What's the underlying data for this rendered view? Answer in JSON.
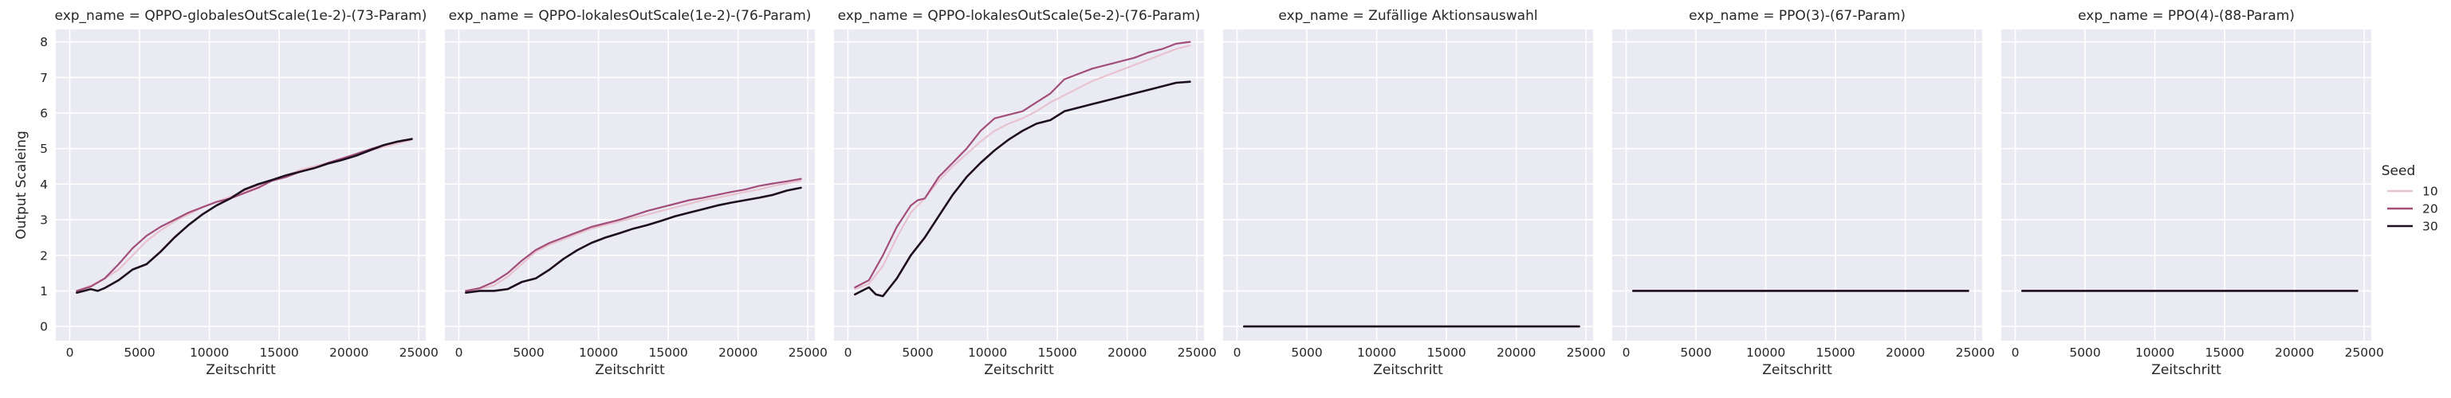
{
  "figure": {
    "ylabel": "Output Scaleing",
    "xlabel": "Zeitschritt",
    "legend": {
      "title": "Seed",
      "placement": "right",
      "entries": [
        {
          "label": "10",
          "color": "#e8c2cf"
        },
        {
          "label": "20",
          "color": "#a24d7a"
        },
        {
          "label": "30",
          "color": "#1d0f1f"
        }
      ]
    },
    "colors": {
      "background": "#eaeaf2",
      "grid": "#ffffff"
    }
  },
  "chart_data": [
    {
      "type": "line",
      "title": "exp_name = QPPO-globalesOutScale(1e-2)-(73-Param)",
      "xlabel": "Zeitschritt",
      "ylabel": "Output Scaleing",
      "xlim": [
        -1000,
        25500
      ],
      "ylim": [
        -0.4,
        8.35
      ],
      "xticks": [
        0,
        5000,
        10000,
        15000,
        20000,
        25000
      ],
      "yticks": [
        0,
        1,
        2,
        3,
        4,
        5,
        6,
        7,
        8
      ],
      "grid": true,
      "series": [
        {
          "name": "10",
          "color": "#e8c2cf",
          "x": [
            500,
            1500,
            2500,
            3500,
            4500,
            5500,
            6500,
            7500,
            8500,
            9500,
            10500,
            11500,
            12500,
            13500,
            14500,
            15500,
            16500,
            17500,
            18500,
            19500,
            20500,
            21500,
            22500,
            23500,
            24500
          ],
          "y": [
            1.0,
            1.15,
            1.35,
            1.6,
            2.0,
            2.4,
            2.7,
            2.95,
            3.15,
            3.35,
            3.5,
            3.65,
            3.8,
            3.95,
            4.1,
            4.25,
            4.4,
            4.5,
            4.6,
            4.72,
            4.82,
            4.95,
            5.05,
            5.15,
            5.25
          ]
        },
        {
          "name": "20",
          "color": "#a24d7a",
          "x": [
            500,
            1500,
            2500,
            3500,
            4500,
            5500,
            6500,
            7500,
            8500,
            9500,
            10500,
            11500,
            12500,
            13500,
            14500,
            15500,
            16500,
            17500,
            18500,
            19500,
            20500,
            21500,
            22500,
            23500,
            24500
          ],
          "y": [
            1.0,
            1.12,
            1.35,
            1.75,
            2.2,
            2.55,
            2.8,
            3.0,
            3.2,
            3.35,
            3.5,
            3.6,
            3.75,
            3.9,
            4.1,
            4.2,
            4.35,
            4.45,
            4.6,
            4.72,
            4.85,
            4.98,
            5.1,
            5.2,
            5.27
          ]
        },
        {
          "name": "30",
          "color": "#1d0f1f",
          "x": [
            500,
            1500,
            2000,
            2500,
            3500,
            4500,
            5500,
            6500,
            7500,
            8500,
            9500,
            10500,
            11500,
            12500,
            13500,
            14500,
            15500,
            16500,
            17500,
            18500,
            19500,
            20500,
            21500,
            22500,
            23500,
            24500
          ],
          "y": [
            0.95,
            1.05,
            1.0,
            1.08,
            1.3,
            1.6,
            1.75,
            2.1,
            2.5,
            2.85,
            3.15,
            3.4,
            3.6,
            3.85,
            4.0,
            4.12,
            4.25,
            4.35,
            4.45,
            4.58,
            4.68,
            4.8,
            4.95,
            5.1,
            5.2,
            5.27
          ]
        }
      ]
    },
    {
      "type": "line",
      "title": "exp_name = QPPO-lokalesOutScale(1e-2)-(76-Param)",
      "xlabel": "Zeitschritt",
      "ylabel": "",
      "xlim": [
        -1000,
        25500
      ],
      "ylim": [
        -0.4,
        8.35
      ],
      "xticks": [
        0,
        5000,
        10000,
        15000,
        20000,
        25000
      ],
      "yticks": [
        0,
        1,
        2,
        3,
        4,
        5,
        6,
        7,
        8
      ],
      "grid": true,
      "series": [
        {
          "name": "10",
          "color": "#e8c2cf",
          "x": [
            500,
            1500,
            2500,
            3500,
            4500,
            5500,
            6500,
            7500,
            8500,
            9500,
            10500,
            11500,
            12500,
            13500,
            14500,
            15500,
            16500,
            17500,
            18500,
            19500,
            20500,
            21500,
            22500,
            23500,
            24500
          ],
          "y": [
            1.0,
            1.05,
            1.15,
            1.4,
            1.75,
            2.1,
            2.3,
            2.45,
            2.6,
            2.75,
            2.85,
            2.95,
            3.05,
            3.15,
            3.25,
            3.35,
            3.45,
            3.55,
            3.62,
            3.7,
            3.78,
            3.85,
            3.95,
            4.02,
            4.1
          ]
        },
        {
          "name": "20",
          "color": "#a24d7a",
          "x": [
            500,
            1500,
            2500,
            3500,
            4500,
            5500,
            6500,
            7500,
            8500,
            9500,
            10500,
            11500,
            12500,
            13500,
            14500,
            15500,
            16500,
            17500,
            18500,
            19500,
            20500,
            21500,
            22500,
            23500,
            24500
          ],
          "y": [
            1.0,
            1.08,
            1.25,
            1.5,
            1.85,
            2.15,
            2.35,
            2.5,
            2.65,
            2.8,
            2.9,
            3.0,
            3.12,
            3.25,
            3.35,
            3.45,
            3.55,
            3.62,
            3.7,
            3.78,
            3.85,
            3.95,
            4.02,
            4.08,
            4.15
          ]
        },
        {
          "name": "30",
          "color": "#1d0f1f",
          "x": [
            500,
            1500,
            2500,
            3500,
            4500,
            5500,
            6500,
            7500,
            8500,
            9500,
            10500,
            11500,
            12500,
            13500,
            14500,
            15500,
            16500,
            17500,
            18500,
            19500,
            20500,
            21500,
            22500,
            23500,
            24500
          ],
          "y": [
            0.95,
            1.0,
            1.0,
            1.05,
            1.25,
            1.35,
            1.6,
            1.9,
            2.15,
            2.35,
            2.5,
            2.62,
            2.75,
            2.85,
            2.97,
            3.1,
            3.2,
            3.3,
            3.4,
            3.48,
            3.55,
            3.62,
            3.7,
            3.82,
            3.9
          ]
        }
      ]
    },
    {
      "type": "line",
      "title": "exp_name = QPPO-lokalesOutScale(5e-2)-(76-Param)",
      "xlabel": "Zeitschritt",
      "ylabel": "",
      "xlim": [
        -1000,
        25500
      ],
      "ylim": [
        -0.4,
        8.35
      ],
      "xticks": [
        0,
        5000,
        10000,
        15000,
        20000,
        25000
      ],
      "yticks": [
        0,
        1,
        2,
        3,
        4,
        5,
        6,
        7,
        8
      ],
      "grid": true,
      "series": [
        {
          "name": "10",
          "color": "#e8c2cf",
          "x": [
            500,
            1500,
            2500,
            3500,
            4500,
            5500,
            6500,
            7500,
            8500,
            9500,
            10500,
            11500,
            12500,
            13500,
            14500,
            15500,
            16500,
            17500,
            18500,
            19500,
            20500,
            21500,
            22500,
            23500,
            24500
          ],
          "y": [
            1.05,
            1.2,
            1.7,
            2.5,
            3.2,
            3.6,
            4.1,
            4.5,
            4.85,
            5.2,
            5.5,
            5.7,
            5.85,
            6.05,
            6.3,
            6.5,
            6.7,
            6.9,
            7.05,
            7.2,
            7.35,
            7.5,
            7.65,
            7.8,
            7.9
          ]
        },
        {
          "name": "20",
          "color": "#a24d7a",
          "x": [
            500,
            1500,
            2500,
            3500,
            4500,
            5000,
            5500,
            6500,
            7500,
            8500,
            9500,
            10500,
            11500,
            12500,
            13500,
            14500,
            15500,
            16500,
            17500,
            18500,
            19500,
            20500,
            21500,
            22500,
            23500,
            24500
          ],
          "y": [
            1.1,
            1.3,
            2.0,
            2.8,
            3.4,
            3.55,
            3.6,
            4.2,
            4.6,
            5.0,
            5.5,
            5.85,
            5.95,
            6.05,
            6.3,
            6.55,
            6.95,
            7.1,
            7.25,
            7.35,
            7.45,
            7.55,
            7.7,
            7.8,
            7.95,
            8.0
          ]
        },
        {
          "name": "30",
          "color": "#1d0f1f",
          "x": [
            500,
            1000,
            1500,
            2000,
            2500,
            3000,
            3500,
            4500,
            5500,
            6500,
            7500,
            8500,
            9500,
            10500,
            11500,
            12500,
            13500,
            14500,
            15500,
            16500,
            17500,
            18500,
            19500,
            20500,
            21500,
            22500,
            23500,
            24500
          ],
          "y": [
            0.9,
            1.0,
            1.1,
            0.9,
            0.85,
            1.1,
            1.35,
            2.0,
            2.5,
            3.1,
            3.7,
            4.2,
            4.6,
            4.95,
            5.25,
            5.5,
            5.7,
            5.8,
            6.05,
            6.15,
            6.25,
            6.35,
            6.45,
            6.55,
            6.65,
            6.75,
            6.85,
            6.88
          ]
        }
      ]
    },
    {
      "type": "line",
      "title": "exp_name = Zufällige Aktionsauswahl",
      "xlabel": "Zeitschritt",
      "ylabel": "",
      "xlim": [
        -1000,
        25500
      ],
      "ylim": [
        -0.4,
        8.35
      ],
      "xticks": [
        0,
        5000,
        10000,
        15000,
        20000,
        25000
      ],
      "yticks": [
        0,
        1,
        2,
        3,
        4,
        5,
        6,
        7,
        8
      ],
      "grid": true,
      "series": [
        {
          "name": "10",
          "color": "#e8c2cf",
          "x": [
            500,
            24500
          ],
          "y": [
            0,
            0
          ]
        },
        {
          "name": "20",
          "color": "#a24d7a",
          "x": [
            500,
            24500
          ],
          "y": [
            0,
            0
          ]
        },
        {
          "name": "30",
          "color": "#1d0f1f",
          "x": [
            500,
            24500
          ],
          "y": [
            0,
            0
          ]
        }
      ]
    },
    {
      "type": "line",
      "title": "exp_name = PPO(3)-(67-Param)",
      "xlabel": "Zeitschritt",
      "ylabel": "",
      "xlim": [
        -1000,
        25500
      ],
      "ylim": [
        -0.4,
        8.35
      ],
      "xticks": [
        0,
        5000,
        10000,
        15000,
        20000,
        25000
      ],
      "yticks": [
        0,
        1,
        2,
        3,
        4,
        5,
        6,
        7,
        8
      ],
      "grid": true,
      "series": [
        {
          "name": "10",
          "color": "#e8c2cf",
          "x": [
            500,
            24500
          ],
          "y": [
            1,
            1
          ]
        },
        {
          "name": "20",
          "color": "#a24d7a",
          "x": [
            500,
            24500
          ],
          "y": [
            1,
            1
          ]
        },
        {
          "name": "30",
          "color": "#1d0f1f",
          "x": [
            500,
            24500
          ],
          "y": [
            1,
            1
          ]
        }
      ]
    },
    {
      "type": "line",
      "title": "exp_name = PPO(4)-(88-Param)",
      "xlabel": "Zeitschritt",
      "ylabel": "",
      "xlim": [
        -1000,
        25500
      ],
      "ylim": [
        -0.4,
        8.35
      ],
      "xticks": [
        0,
        5000,
        10000,
        15000,
        20000,
        25000
      ],
      "yticks": [
        0,
        1,
        2,
        3,
        4,
        5,
        6,
        7,
        8
      ],
      "grid": true,
      "series": [
        {
          "name": "10",
          "color": "#e8c2cf",
          "x": [
            500,
            24500
          ],
          "y": [
            1,
            1
          ]
        },
        {
          "name": "20",
          "color": "#a24d7a",
          "x": [
            500,
            24500
          ],
          "y": [
            1,
            1
          ]
        },
        {
          "name": "30",
          "color": "#1d0f1f",
          "x": [
            500,
            24500
          ],
          "y": [
            1,
            1
          ]
        }
      ]
    }
  ]
}
